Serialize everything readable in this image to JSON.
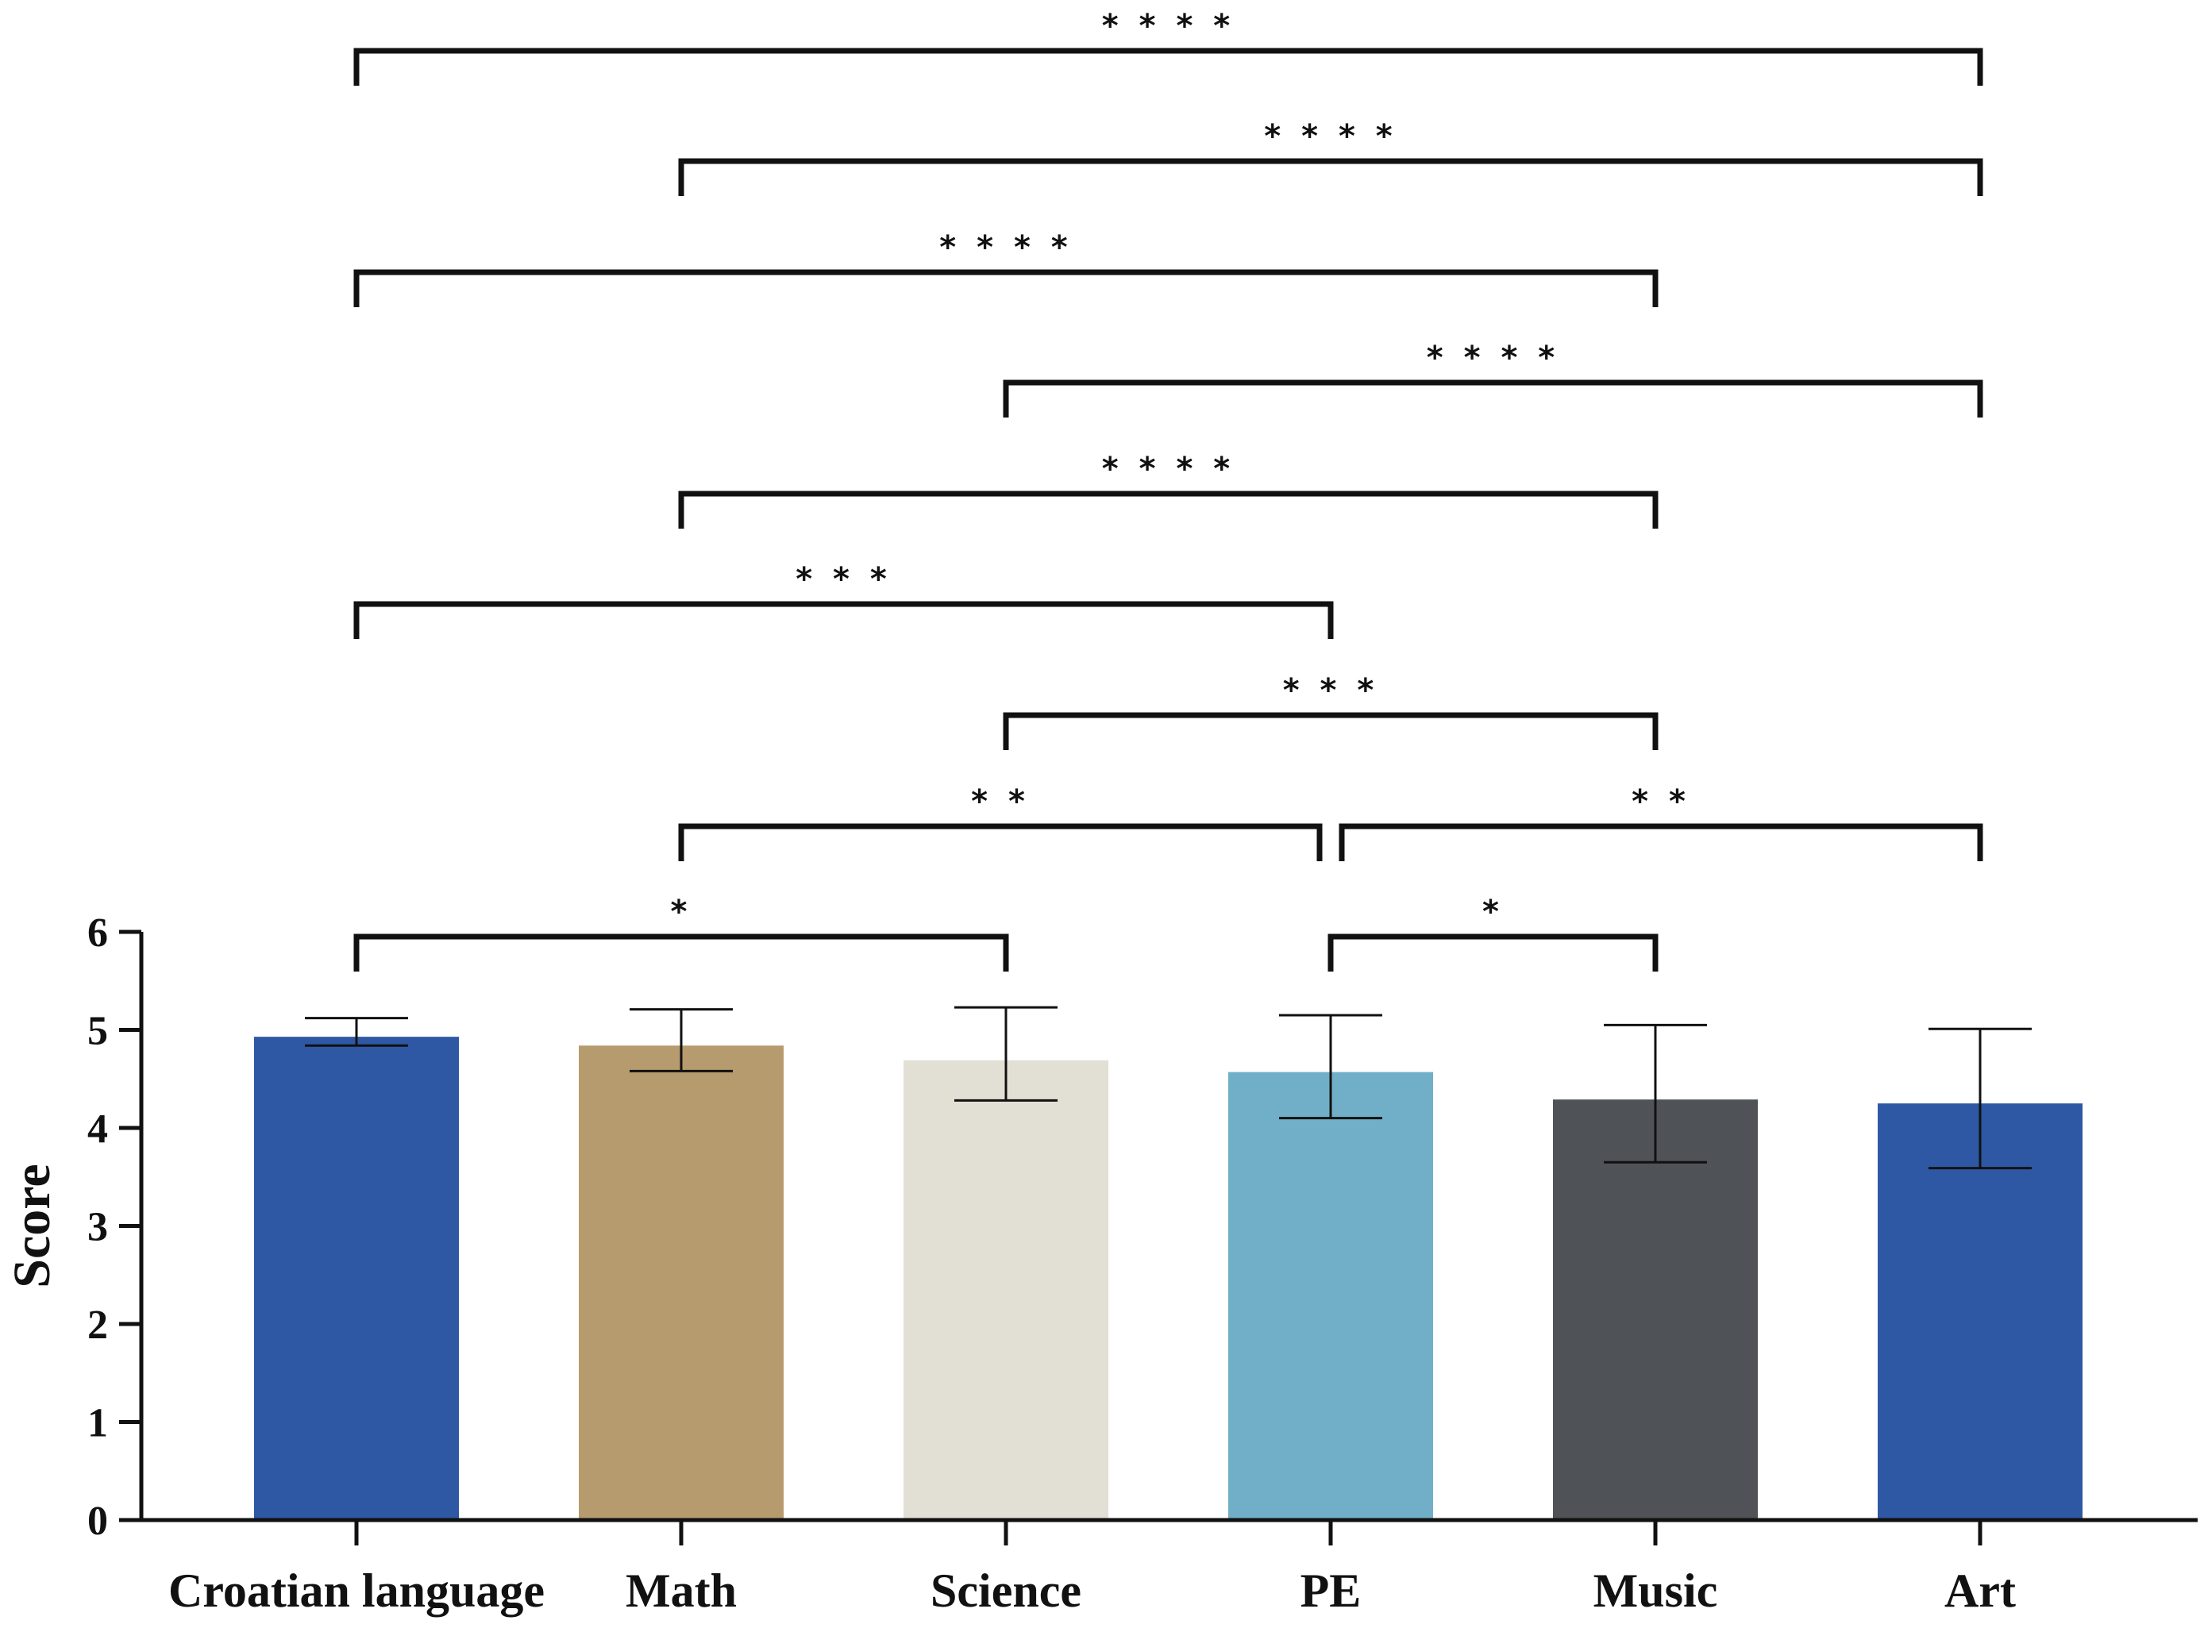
{
  "chart_data": {
    "type": "bar",
    "title": "",
    "xlabel": "",
    "ylabel": "Score",
    "ylim": [
      0,
      6
    ],
    "yticks": [
      "0",
      "1",
      "2",
      "3",
      "4",
      "5",
      "6"
    ],
    "grid": false,
    "categories": [
      "Croatian language",
      "Math",
      "Science",
      "PE",
      "Music",
      "Art"
    ],
    "values": [
      4.93,
      4.84,
      4.69,
      4.57,
      4.29,
      4.25
    ],
    "error_low": [
      4.84,
      4.58,
      4.28,
      4.1,
      3.65,
      3.59
    ],
    "error_high": [
      5.12,
      5.21,
      5.23,
      5.15,
      5.05,
      5.01
    ],
    "colors": [
      "#2e58a4",
      "#b59b6d",
      "#e2dfd4",
      "#71afc8",
      "#4f5257",
      "#2e58a4"
    ],
    "significance": [
      {
        "from": 0,
        "to": 5,
        "stars": "****"
      },
      {
        "from": 1,
        "to": 5,
        "stars": "****"
      },
      {
        "from": 0,
        "to": 4,
        "stars": "****"
      },
      {
        "from": 2,
        "to": 5,
        "stars": "****"
      },
      {
        "from": 1,
        "to": 4,
        "stars": "****"
      },
      {
        "from": 0,
        "to": 3,
        "stars": "***"
      },
      {
        "from": 2,
        "to": 4,
        "stars": "***"
      },
      {
        "from": 1,
        "to": 3,
        "stars": "**"
      },
      {
        "from": 3,
        "to": 5,
        "stars": "**"
      },
      {
        "from": 0,
        "to": 2,
        "stars": "*"
      },
      {
        "from": 3,
        "to": 4,
        "stars": "*"
      }
    ]
  }
}
